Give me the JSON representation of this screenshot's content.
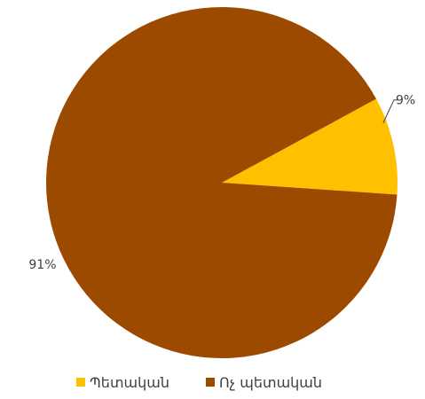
{
  "chart_data": {
    "type": "pie",
    "categories": [
      "Պետական",
      "Ոչ պետական"
    ],
    "values": [
      9,
      91
    ],
    "data_labels": [
      "9%",
      "91%"
    ],
    "colors": [
      "#FFC000",
      "#9C4A00"
    ],
    "legend_position": "bottom",
    "title": "",
    "xlabel": "",
    "ylabel": ""
  }
}
